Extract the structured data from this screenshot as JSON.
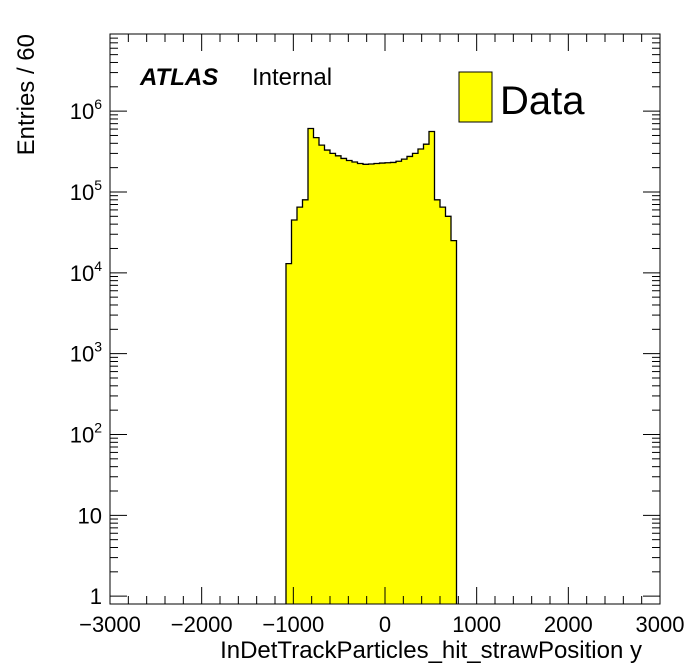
{
  "chart_data": {
    "type": "bar",
    "title": "",
    "xlabel": "InDetTrackParticles_hit_strawPosition y",
    "ylabel": "Entries / 60",
    "xlim": [
      -3000,
      3000
    ],
    "ylim": [
      0.8,
      9000000
    ],
    "log_y": true,
    "grid": false,
    "legend_position": "top-right",
    "atlas_label": "ATLAS",
    "atlas_status": "Internal",
    "x_tick_labels": [
      "−3000",
      "−2000",
      "−1000",
      "0",
      "1000",
      "2000",
      "3000"
    ],
    "x_ticks": [
      -3000,
      -2000,
      -1000,
      0,
      1000,
      2000,
      3000
    ],
    "y_tick_labels": [
      {
        "value": 1,
        "mantissa": "1",
        "exp": ""
      },
      {
        "value": 10,
        "mantissa": "10",
        "exp": ""
      },
      {
        "value": 100,
        "mantissa": "10",
        "exp": "2"
      },
      {
        "value": 1000,
        "mantissa": "10",
        "exp": "3"
      },
      {
        "value": 10000,
        "mantissa": "10",
        "exp": "4"
      },
      {
        "value": 100000,
        "mantissa": "10",
        "exp": "5"
      },
      {
        "value": 1000000,
        "mantissa": "10",
        "exp": "6"
      }
    ],
    "bin_width": 60,
    "series": [
      {
        "name": "Data",
        "color": "#ffff00",
        "edge_color": "#000000",
        "bins_low": -1080,
        "values": [
          13000,
          45000,
          65000,
          80000,
          610000,
          470000,
          380000,
          330000,
          300000,
          280000,
          260000,
          245000,
          235000,
          225000,
          220000,
          222000,
          225000,
          228000,
          230000,
          232000,
          240000,
          255000,
          275000,
          300000,
          340000,
          390000,
          560000,
          80000,
          65000,
          50000,
          25000
        ]
      }
    ]
  }
}
